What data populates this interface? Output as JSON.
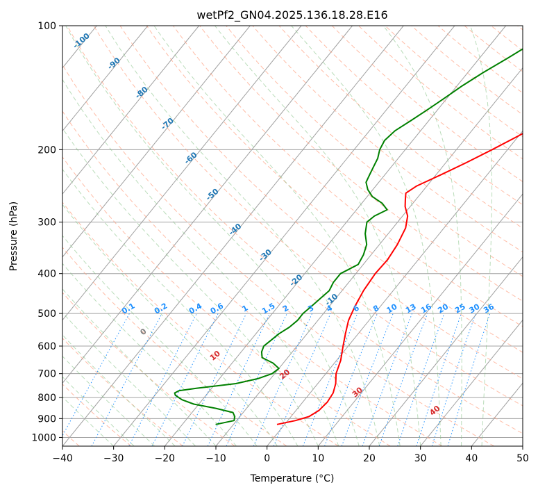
{
  "chart_data": {
    "type": "line",
    "title": "wetPf2_GN04.2025.136.18.28.E16",
    "xlabel": "Temperature (°C)",
    "ylabel": "Pressure (hPa)",
    "xlim": [
      -40,
      50
    ],
    "ylim": [
      1050,
      100
    ],
    "y_scale": "log",
    "x_ticks": [
      -40,
      -30,
      -20,
      -10,
      0,
      10,
      20,
      30,
      40,
      50
    ],
    "y_ticks": [
      100,
      200,
      300,
      400,
      500,
      600,
      700,
      800,
      900,
      1000
    ],
    "grid": true,
    "colors": {
      "temperature": "#ff0000",
      "dewpoint": "#008000",
      "isotherm": "#a0a0a0",
      "dry_adiabat": "#ff9f80",
      "moist_adiabat": "#80c080",
      "mixing_ratio": "#1e90ff",
      "label_blue": "#1f77b4",
      "label_red": "#d62728"
    },
    "series": [
      {
        "key": "temperature",
        "p": [
          930,
          910,
          890,
          860,
          820,
          780,
          740,
          700,
          650,
          600,
          560,
          520,
          480,
          440,
          400,
          370,
          340,
          310,
          290,
          275,
          265,
          255,
          245,
          230,
          215,
          200,
          185,
          170,
          160,
          150,
          140,
          130,
          120,
          110,
          100
        ],
        "t": [
          -1.5,
          1.5,
          3.5,
          4.5,
          4.8,
          4.5,
          3.5,
          2.0,
          0.8,
          -1.0,
          -2.5,
          -4.0,
          -5.0,
          -5.8,
          -6.2,
          -6.0,
          -6.5,
          -7.5,
          -9.0,
          -11.0,
          -12.0,
          -13.0,
          -12.0,
          -9.0,
          -6.0,
          -3.0,
          0.0,
          3.0,
          4.0,
          6.0,
          9.0,
          12.0,
          16.0,
          20.0,
          23.0
        ]
      },
      {
        "key": "dewpoint",
        "p": [
          930,
          910,
          890,
          870,
          850,
          830,
          810,
          790,
          780,
          770,
          760,
          740,
          720,
          700,
          680,
          660,
          640,
          620,
          600,
          580,
          560,
          540,
          520,
          500,
          480,
          460,
          440,
          420,
          400,
          390,
          380,
          360,
          340,
          320,
          300,
          290,
          280,
          270,
          260,
          250,
          240,
          230,
          220,
          210,
          200,
          190,
          180,
          170,
          160,
          150,
          140,
          130,
          120,
          110,
          100
        ],
        "t": [
          -13.5,
          -10.5,
          -11.0,
          -12.0,
          -16.0,
          -21.0,
          -24.0,
          -26.0,
          -26.5,
          -26.0,
          -23.0,
          -16.0,
          -12.5,
          -10.5,
          -10.0,
          -12.0,
          -15.0,
          -16.0,
          -16.5,
          -16.0,
          -15.5,
          -14.5,
          -14.0,
          -14.0,
          -13.5,
          -13.0,
          -12.5,
          -13.0,
          -13.0,
          -12.0,
          -11.0,
          -11.5,
          -12.5,
          -14.5,
          -16.0,
          -15.5,
          -14.0,
          -16.0,
          -19.0,
          -21.0,
          -22.5,
          -23.0,
          -23.5,
          -24.0,
          -25.0,
          -25.5,
          -25.0,
          -23.5,
          -22.0,
          -20.5,
          -19.0,
          -17.0,
          -14.5,
          -12.0,
          -10.0
        ]
      }
    ],
    "dry_adiabat_labels": [
      {
        "text": "0",
        "theta_c": 0,
        "p": 560
      },
      {
        "text": "10",
        "theta_c": 10,
        "p": 640
      },
      {
        "text": "20",
        "theta_c": 20,
        "p": 710
      },
      {
        "text": "30",
        "theta_c": 30,
        "p": 785
      },
      {
        "text": "40",
        "theta_c": 40,
        "p": 870
      }
    ],
    "moist_adiabat_labels": [
      {
        "text": "-100",
        "t": -100,
        "p": 110
      },
      {
        "text": "-90",
        "t": -90,
        "p": 125
      },
      {
        "text": "-80",
        "t": -80,
        "p": 147
      },
      {
        "text": "-70",
        "t": -70,
        "p": 175
      },
      {
        "text": "-60",
        "t": -60,
        "p": 212
      },
      {
        "text": "-50",
        "t": -50,
        "p": 260
      },
      {
        "text": "-40",
        "t": -40,
        "p": 316
      },
      {
        "text": "-30",
        "t": -30,
        "p": 365
      },
      {
        "text": "-20",
        "t": -20,
        "p": 420
      },
      {
        "text": "-10",
        "t": -10,
        "p": 468
      }
    ],
    "mixing_ratio_labels": [
      "0.1",
      "0.2",
      "0.4",
      "0.6",
      "1",
      "1.5",
      "2",
      "3",
      "4",
      "6",
      "8",
      "10",
      "13",
      "16",
      "20",
      "25",
      "30",
      "36"
    ]
  }
}
